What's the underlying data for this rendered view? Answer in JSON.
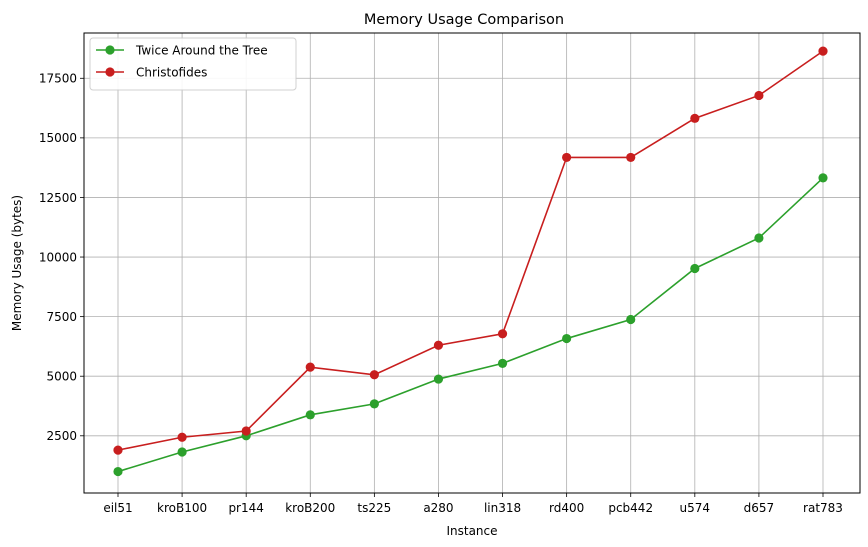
{
  "chart_data": {
    "type": "line",
    "title": "Memory Usage Comparison",
    "xlabel": "Instance",
    "ylabel": "Memory Usage (bytes)",
    "categories": [
      "eil51",
      "kroB100",
      "pr144",
      "kroB200",
      "ts225",
      "a280",
      "lin318",
      "rd400",
      "pcb442",
      "u574",
      "d657",
      "rat783"
    ],
    "ylim": [
      100,
      19400
    ],
    "yticks": [
      2500,
      5000,
      7500,
      10000,
      12500,
      15000,
      17500
    ],
    "grid": true,
    "legend": "top-left",
    "series": [
      {
        "name": "Twice Around the Tree",
        "color": "#2ca02c",
        "values": [
          1000,
          1820,
          2500,
          3380,
          3840,
          4880,
          5540,
          6580,
          7380,
          9520,
          10800,
          13320
        ]
      },
      {
        "name": "Christofides",
        "color": "#c81e1e",
        "values": [
          1900,
          2440,
          2700,
          5380,
          5060,
          6300,
          6780,
          14180,
          14180,
          15820,
          16780,
          18640
        ]
      }
    ]
  }
}
